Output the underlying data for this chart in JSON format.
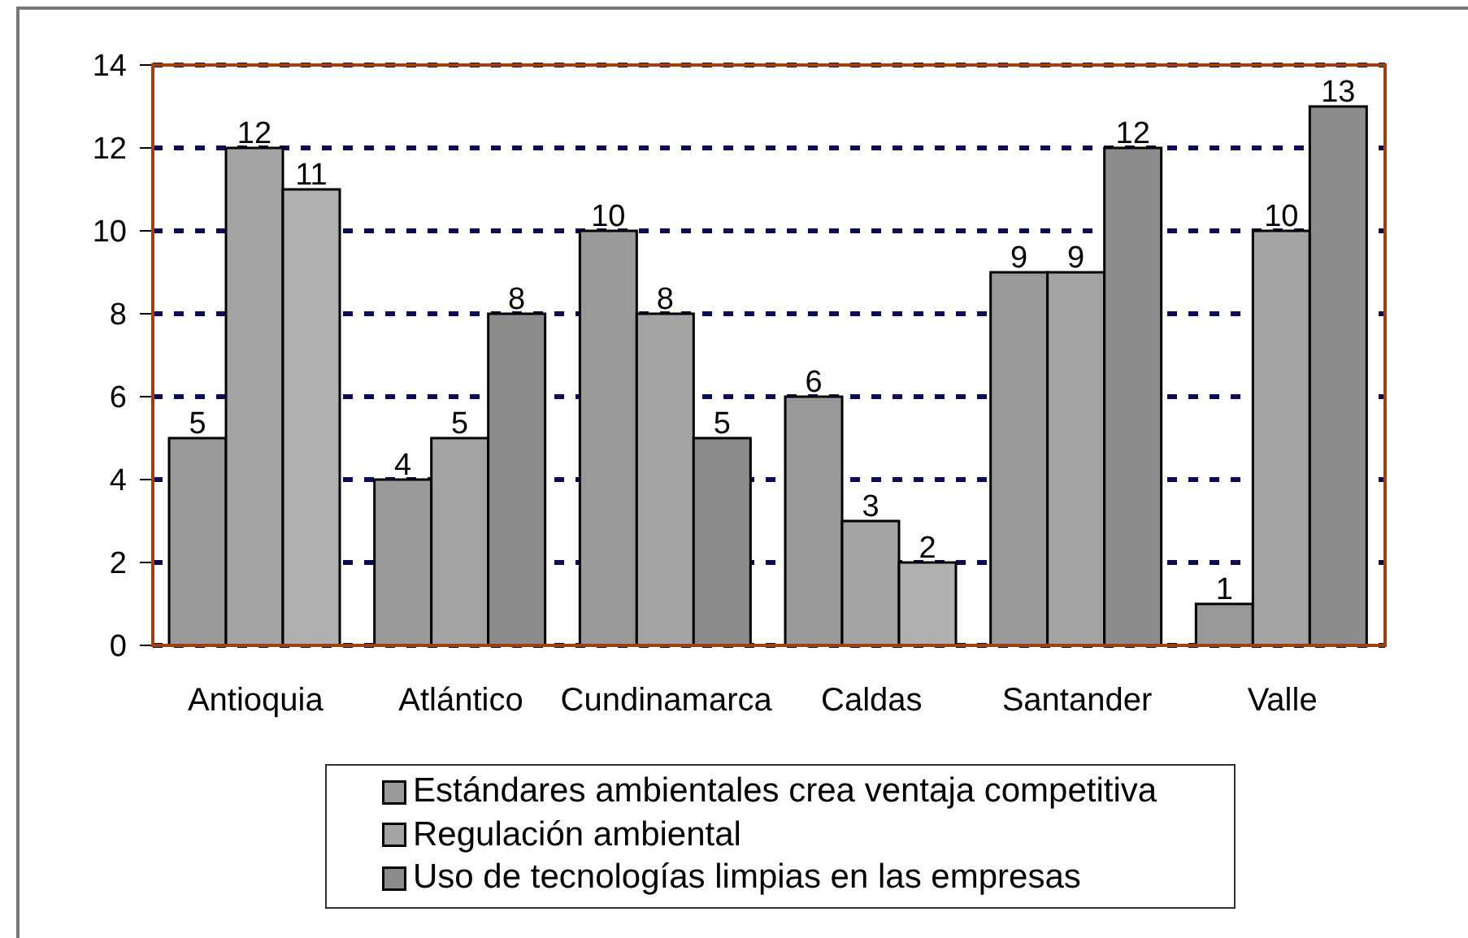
{
  "chart_data": {
    "type": "bar",
    "categories": [
      "Antioquia",
      "Atlántico",
      "Cundinamarca",
      "Caldas",
      "Santander",
      "Valle"
    ],
    "series": [
      {
        "name": "Estándares ambientales crea ventaja competitiva",
        "color": "#999999",
        "values": [
          5,
          4,
          10,
          6,
          9,
          1
        ]
      },
      {
        "name": "Regulación ambiental",
        "color": "#a3a3a3",
        "values": [
          12,
          5,
          8,
          3,
          9,
          10
        ]
      },
      {
        "name": "Uso de tecnologías limpias en las empresas",
        "color": "#8c8c8c",
        "colors": [
          "#b0b0b0",
          "#8c8c8c",
          "#8c8c8c",
          "#b0b0b0",
          "#8c8c8c",
          "#8c8c8c"
        ],
        "values": [
          11,
          8,
          5,
          2,
          12,
          13
        ]
      }
    ],
    "ylim": [
      0,
      14
    ],
    "yticks": [
      0,
      2,
      4,
      6,
      8,
      10,
      12,
      14
    ],
    "grid": "y",
    "legend": "bottom",
    "data_labels": true
  }
}
